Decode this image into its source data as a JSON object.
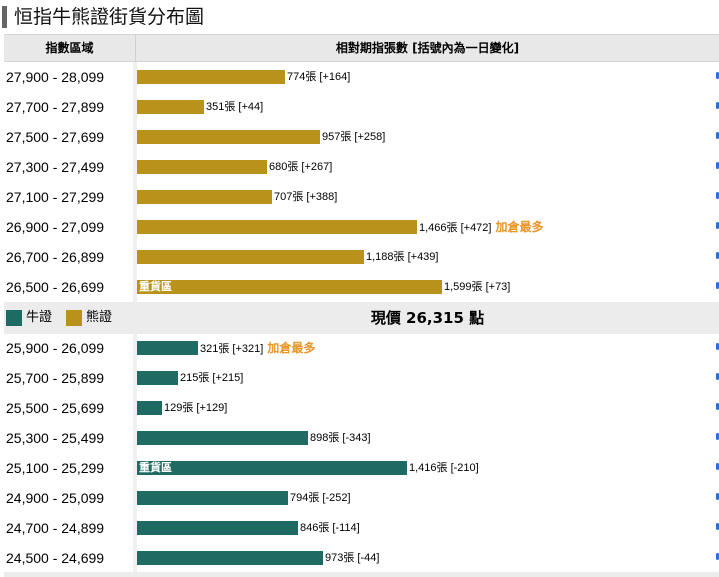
{
  "title": "恒指牛熊證街貨分布圖",
  "header": {
    "range_label": "指數區域",
    "relative_label": "相對期指張數 [括號內為一日變化]"
  },
  "legend": {
    "bull_label": "牛證",
    "bear_label": "熊證",
    "bull_color": "#1f6b64",
    "bear_color": "#b8921a"
  },
  "current_price_label": "現價 26,315 點",
  "flag_text": "加倉最多",
  "heavy_text": "重貨區",
  "chart_data": {
    "type": "bar",
    "orientation": "horizontal",
    "xlim": [
      0,
      2000
    ],
    "bear": [
      {
        "range": "27,900 - 28,099",
        "value": 774,
        "label": "774張 [+164]",
        "flag": false,
        "heavy": false
      },
      {
        "range": "27,700 - 27,899",
        "value": 351,
        "label": "351張 [+44]",
        "flag": false,
        "heavy": false
      },
      {
        "range": "27,500 - 27,699",
        "value": 957,
        "label": "957張 [+258]",
        "flag": false,
        "heavy": false
      },
      {
        "range": "27,300 - 27,499",
        "value": 680,
        "label": "680張 [+267]",
        "flag": false,
        "heavy": false
      },
      {
        "range": "27,100 - 27,299",
        "value": 707,
        "label": "707張 [+388]",
        "flag": false,
        "heavy": false
      },
      {
        "range": "26,900 - 27,099",
        "value": 1466,
        "label": "1,466張 [+472]",
        "flag": true,
        "heavy": false
      },
      {
        "range": "26,700 - 26,899",
        "value": 1188,
        "label": "1,188張 [+439]",
        "flag": false,
        "heavy": false
      },
      {
        "range": "26,500 - 26,699",
        "value": 1599,
        "label": "1,599張 [+73]",
        "flag": false,
        "heavy": true
      }
    ],
    "bull": [
      {
        "range": "25,900 - 26,099",
        "value": 321,
        "label": "321張 [+321]",
        "flag": true,
        "heavy": false
      },
      {
        "range": "25,700 - 25,899",
        "value": 215,
        "label": "215張 [+215]",
        "flag": false,
        "heavy": false
      },
      {
        "range": "25,500 - 25,699",
        "value": 129,
        "label": "129張 [+129]",
        "flag": false,
        "heavy": false
      },
      {
        "range": "25,300 - 25,499",
        "value": 898,
        "label": "898張 [-343]",
        "flag": false,
        "heavy": false
      },
      {
        "range": "25,100 - 25,299",
        "value": 1416,
        "label": "1,416張 [-210]",
        "flag": false,
        "heavy": true
      },
      {
        "range": "24,900 - 25,099",
        "value": 794,
        "label": "794張 [-252]",
        "flag": false,
        "heavy": false
      },
      {
        "range": "24,700 - 24,899",
        "value": 846,
        "label": "846張 [-114]",
        "flag": false,
        "heavy": false
      },
      {
        "range": "24,500 - 24,699",
        "value": 973,
        "label": "973張 [-44]",
        "flag": false,
        "heavy": false
      }
    ]
  }
}
